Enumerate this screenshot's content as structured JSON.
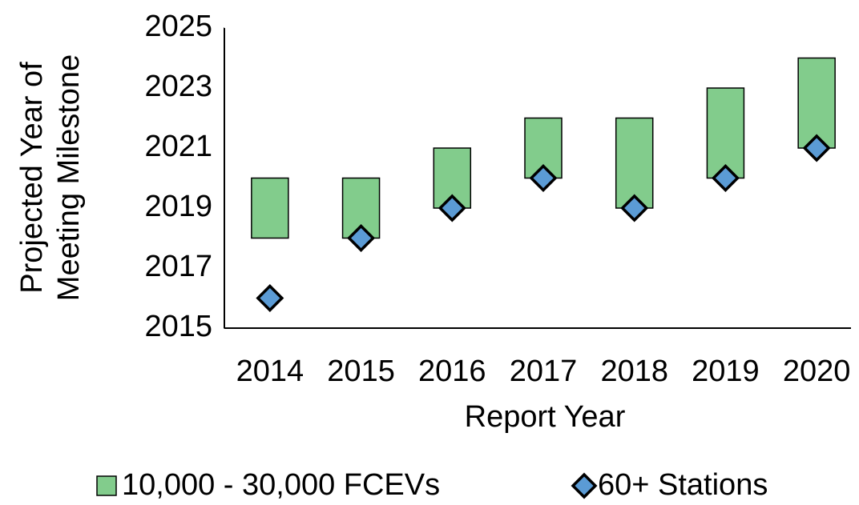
{
  "chart_data": {
    "type": "floating-bar-marker",
    "ylabel": [
      "Projected Year of",
      "Meeting Milestone"
    ],
    "xlabel": "Report Year",
    "categories": [
      "2014",
      "2015",
      "2016",
      "2017",
      "2018",
      "2019",
      "2020"
    ],
    "ylim": [
      2015,
      2025
    ],
    "yticks": [
      2015,
      2017,
      2019,
      2021,
      2023,
      2025
    ],
    "series": [
      {
        "name": "10,000 - 30,000 FCEVs",
        "color": "#82cc8c",
        "low": [
          2018,
          2018,
          2019,
          2020,
          2019,
          2020,
          2021
        ],
        "high": [
          2020,
          2020,
          2021,
          2022,
          2022,
          2023,
          2024
        ]
      },
      {
        "name": "60+ Stations",
        "color": "#5b9bd5",
        "values": [
          2016,
          2018,
          2019,
          2020,
          2019,
          2020,
          2021
        ]
      }
    ]
  }
}
